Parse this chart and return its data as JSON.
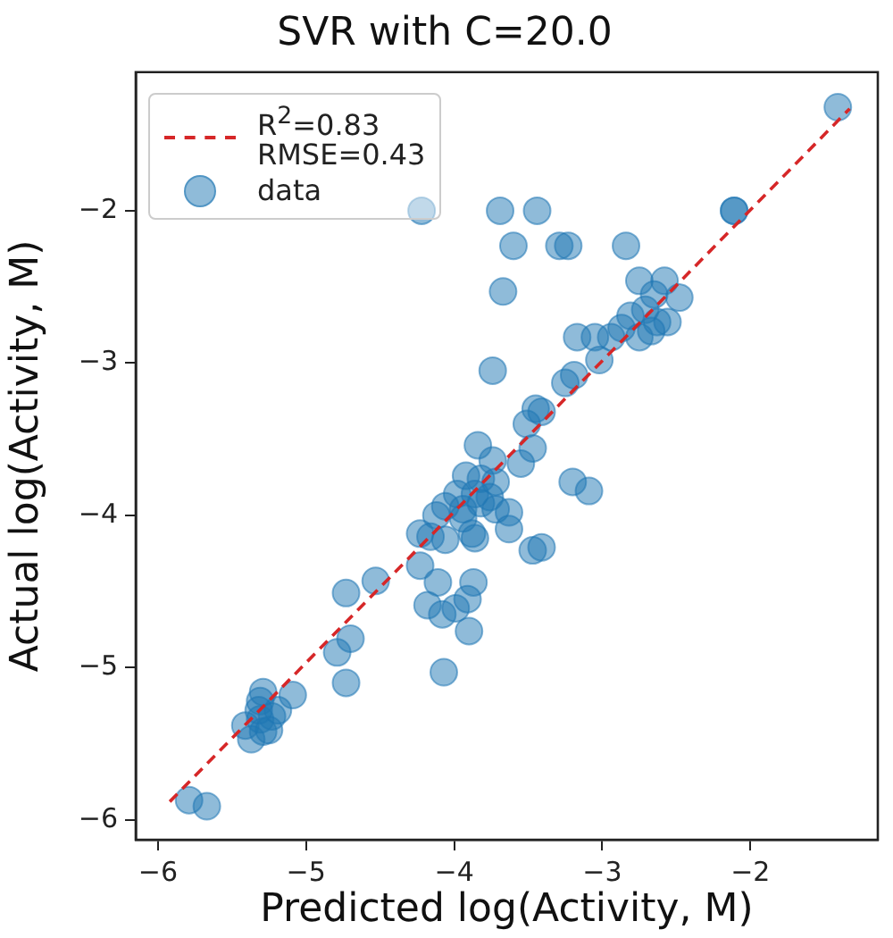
{
  "chart_data": {
    "type": "scatter",
    "title": "SVR with C=20.0",
    "xlabel": "Predicted log(Activity, M)",
    "ylabel": "Actual log(Activity, M)",
    "xlim": [
      -6.15,
      -1.14
    ],
    "ylim": [
      -6.13,
      -1.09
    ],
    "xticks": [
      {
        "value": -6,
        "label": "−6"
      },
      {
        "value": -5,
        "label": "−5"
      },
      {
        "value": -4,
        "label": "−4"
      },
      {
        "value": -3,
        "label": "−3"
      },
      {
        "value": -2,
        "label": "−2"
      }
    ],
    "yticks": [
      {
        "value": -6,
        "label": "−6"
      },
      {
        "value": -5,
        "label": "−5"
      },
      {
        "value": -4,
        "label": "−4"
      },
      {
        "value": -3,
        "label": "−3"
      },
      {
        "value": -2,
        "label": "−2"
      }
    ],
    "grid": false,
    "legend": "top left",
    "marker": "circle",
    "series": [
      {
        "name": "R$^{2}$=0.83\nRMSE=0.43",
        "type": "line",
        "color": "#d62728",
        "line_style": "dashed",
        "marker": "none",
        "x": [
          -5.92,
          -1.33
        ],
        "values": [
          -5.88,
          -1.33
        ]
      },
      {
        "name": "data",
        "type": "scatter",
        "color": "#1f77b4",
        "x": [
          -1.41,
          -2.11,
          -2.11,
          -3.69,
          -3.44,
          -4.22,
          -3.6,
          -3.29,
          -3.23,
          -2.84,
          -3.67,
          -2.75,
          -2.58,
          -2.65,
          -2.48,
          -2.81,
          -2.71,
          -2.63,
          -2.87,
          -2.75,
          -2.56,
          -2.67,
          -2.94,
          -3.17,
          -3.05,
          -3.02,
          -3.74,
          -3.19,
          -3.25,
          -3.51,
          -3.41,
          -3.45,
          -3.47,
          -3.55,
          -3.84,
          -3.74,
          -3.2,
          -3.09,
          -3.92,
          -3.82,
          -3.72,
          -3.98,
          -3.86,
          -3.76,
          -4.06,
          -3.94,
          -3.82,
          -4.12,
          -3.94,
          -3.72,
          -3.63,
          -3.63,
          -4.23,
          -4.16,
          -4.06,
          -3.88,
          -3.86,
          -3.47,
          -3.41,
          -4.23,
          -4.11,
          -3.87,
          -4.53,
          -4.73,
          -4.18,
          -4.08,
          -3.99,
          -3.91,
          -3.9,
          -4.7,
          -4.79,
          -4.07,
          -4.73,
          -5.09,
          -5.29,
          -5.31,
          -5.41,
          -5.31,
          -5.23,
          -5.19,
          -5.29,
          -5.37,
          -5.25,
          -5.32,
          -5.79,
          -5.67
        ],
        "values": [
          -1.32,
          -2.0,
          -2.0,
          -2.0,
          -2.0,
          -2.0,
          -2.23,
          -2.23,
          -2.23,
          -2.23,
          -2.53,
          -2.46,
          -2.46,
          -2.55,
          -2.57,
          -2.69,
          -2.65,
          -2.73,
          -2.77,
          -2.83,
          -2.73,
          -2.79,
          -2.83,
          -2.83,
          -2.83,
          -2.98,
          -3.05,
          -3.08,
          -3.13,
          -3.4,
          -3.32,
          -3.3,
          -3.56,
          -3.66,
          -3.54,
          -3.64,
          -3.78,
          -3.84,
          -3.74,
          -3.76,
          -3.78,
          -3.86,
          -3.86,
          -3.88,
          -3.94,
          -3.96,
          -3.92,
          -4.0,
          -4.02,
          -3.96,
          -3.98,
          -4.09,
          -4.12,
          -4.14,
          -4.16,
          -4.12,
          -4.15,
          -4.23,
          -4.21,
          -4.33,
          -4.44,
          -4.44,
          -4.43,
          -4.51,
          -4.59,
          -4.65,
          -4.61,
          -4.55,
          -4.76,
          -4.81,
          -4.9,
          -5.03,
          -5.1,
          -5.18,
          -5.16,
          -5.22,
          -5.38,
          -5.34,
          -5.32,
          -5.28,
          -5.42,
          -5.47,
          -5.41,
          -5.28,
          -5.87,
          -5.91
        ]
      }
    ]
  }
}
